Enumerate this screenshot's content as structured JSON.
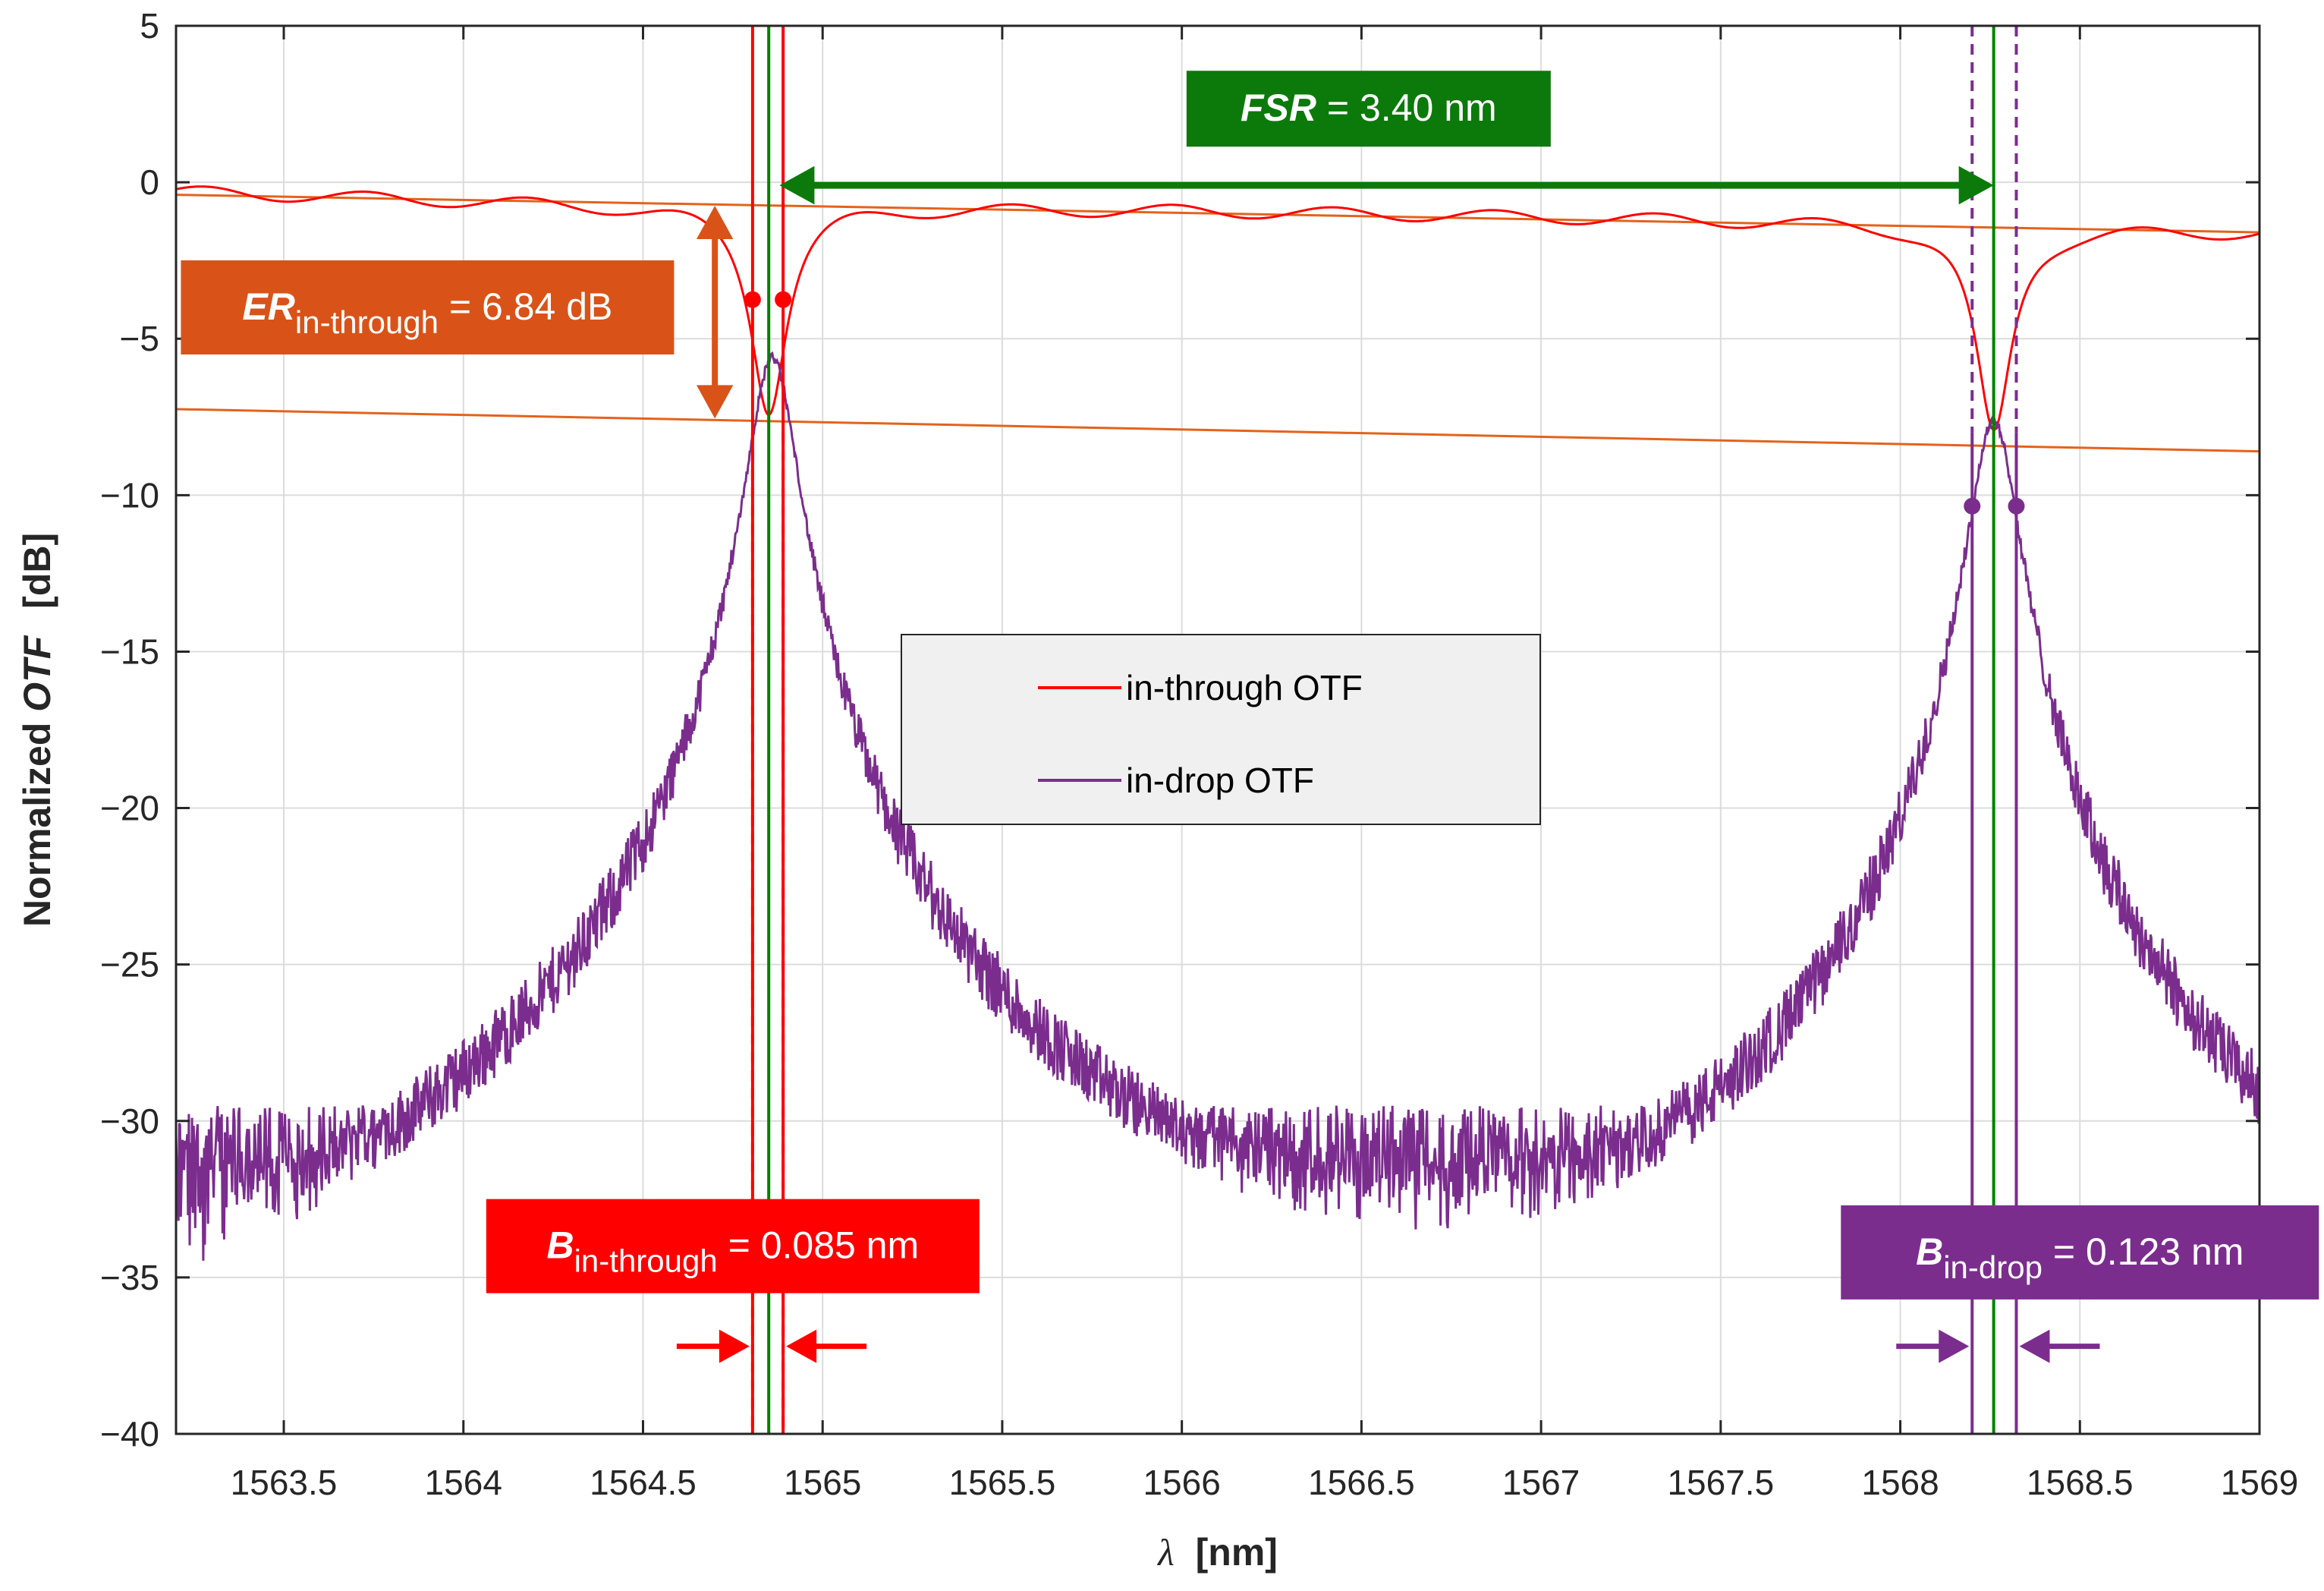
{
  "chart_data": {
    "type": "line",
    "title": "",
    "xlabel_symbol": "λ",
    "xlabel_unit": "[nm]",
    "ylabel_prefix": "Normalized ",
    "ylabel_var": "OTF",
    "ylabel_unit": "[dB]",
    "xlim": [
      1563.2,
      1569.0
    ],
    "ylim": [
      -40,
      5
    ],
    "xticks": [
      1563.5,
      1564,
      1564.5,
      1565,
      1565.5,
      1566,
      1566.5,
      1567,
      1567.5,
      1568,
      1568.5,
      1569
    ],
    "xtick_labels": [
      "1563.5",
      "1564",
      "1564.5",
      "1565",
      "1565.5",
      "1566",
      "1566.5",
      "1567",
      "1567.5",
      "1568",
      "1568.5",
      "1569"
    ],
    "yticks": [
      5,
      0,
      -5,
      -10,
      -15,
      -20,
      -25,
      -30,
      -35,
      -40
    ],
    "ytick_labels": [
      "5",
      "0",
      "−5",
      "−10",
      "−15",
      "−20",
      "−25",
      "−30",
      "−35",
      "−40"
    ],
    "grid": true,
    "legend_position": "center",
    "series": [
      {
        "name": "in-through OTF",
        "color": "#ff0000",
        "baseline_db": [
          [
            1563.2,
            -0.3
          ],
          [
            1564.5,
            -0.75
          ],
          [
            1566,
            -0.9
          ],
          [
            1568.0,
            -1.3
          ],
          [
            1569.0,
            -1.6
          ]
        ],
        "notch_center_nm": 1564.85,
        "notch_depth_db": -7.2,
        "notch2_center_nm": 1568.26,
        "notch2_depth_db": -8.0,
        "ripple_amplitude_db": 0.2
      },
      {
        "name": "in-drop OTF",
        "color": "#7b2d8e",
        "peaks": [
          {
            "center_nm": 1564.86,
            "peak_db": -5.6,
            "fwhm_nm": 0.123
          },
          {
            "center_nm": 1568.26,
            "peak_db": -7.6,
            "fwhm_nm": 0.123
          }
        ],
        "noise_floor_db": -29.5,
        "noise_spread_db": 12
      }
    ],
    "reference_lines": [
      {
        "name": "through-max-fit",
        "color": "#e3631c",
        "from": [
          1563.2,
          -0.4
        ],
        "to": [
          1569.0,
          -1.6
        ]
      },
      {
        "name": "through-min-fit",
        "color": "#e3631c",
        "from": [
          1563.2,
          -7.25
        ],
        "to": [
          1569.0,
          -8.6
        ]
      }
    ],
    "vertical_markers": [
      {
        "name": "through-bw-left",
        "x": 1564.805,
        "color": "#ff0000",
        "style": "solid",
        "y_from": -40,
        "y_to": 5
      },
      {
        "name": "through-bw-right",
        "x": 1564.89,
        "color": "#ff0000",
        "style": "solid",
        "y_from": -40,
        "y_to": 5
      },
      {
        "name": "through-bw-left-dash",
        "x": 1564.805,
        "color": "#ff0000",
        "style": "dashed",
        "y_from": -40,
        "y_to": -8
      },
      {
        "name": "through-bw-right-dash",
        "x": 1564.89,
        "color": "#ff0000",
        "style": "dashed",
        "y_from": -40,
        "y_to": -8
      },
      {
        "name": "resonance-1",
        "x": 1564.85,
        "color": "#008000",
        "style": "solid",
        "y_from": -40,
        "y_to": 5
      },
      {
        "name": "resonance-2",
        "x": 1568.26,
        "color": "#008000",
        "style": "solid",
        "y_from": -40,
        "y_to": 5
      },
      {
        "name": "drop-bw-left",
        "x": 1568.2,
        "color": "#7b2d8e",
        "style": "solid",
        "y_from": -40,
        "y_to": -8
      },
      {
        "name": "drop-bw-right",
        "x": 1568.323,
        "color": "#7b2d8e",
        "style": "solid",
        "y_from": -40,
        "y_to": -8
      },
      {
        "name": "drop-bw-left-dash",
        "x": 1568.2,
        "color": "#7b2d8e",
        "style": "dashed",
        "y_from": -8,
        "y_to": 5
      },
      {
        "name": "drop-bw-right-dash",
        "x": 1568.323,
        "color": "#7b2d8e",
        "style": "dashed",
        "y_from": -8,
        "y_to": 5
      }
    ],
    "markers": [
      {
        "name": "through-3db-left",
        "x": 1564.805,
        "y": -3.75,
        "color": "#ff0000"
      },
      {
        "name": "through-3db-right",
        "x": 1564.89,
        "y": -3.75,
        "color": "#ff0000"
      },
      {
        "name": "drop-3db-left",
        "x": 1568.2,
        "y": -10.35,
        "color": "#7b2d8e"
      },
      {
        "name": "drop-3db-right",
        "x": 1568.323,
        "y": -10.35,
        "color": "#7b2d8e"
      }
    ],
    "annotations": {
      "fsr": {
        "var": "FSR",
        "text": " = 3.40 nm",
        "color": "#0b7a0b",
        "arrow_from_x": 1564.88,
        "arrow_to_x": 1568.26,
        "arrow_y": 0.0,
        "box_center": [
          1566.52,
          2.35
        ]
      },
      "er": {
        "var": "ER",
        "sub": "in-through",
        "text": " = 6.84 dB",
        "color": "#d95319",
        "arrow_x": 1564.7,
        "arrow_y_top": -0.75,
        "arrow_y_bottom": -7.55,
        "box_center": [
          1563.9,
          -4.0
        ]
      },
      "b_through": {
        "var": "B",
        "sub": "in-through",
        "text": " = 0.085 nm",
        "color": "#ff0000",
        "box_center": [
          1564.75,
          -34.0
        ],
        "arrow_y": -37.2,
        "arrow_left_x": 1564.805,
        "arrow_right_x": 1564.89
      },
      "b_drop": {
        "var": "B",
        "sub": "in-drop",
        "text": " = 0.123 nm",
        "color": "#7b2d8e",
        "box_center": [
          1568.5,
          -34.2
        ],
        "arrow_y": -37.2,
        "arrow_left_x": 1568.2,
        "arrow_right_x": 1568.323
      }
    }
  }
}
